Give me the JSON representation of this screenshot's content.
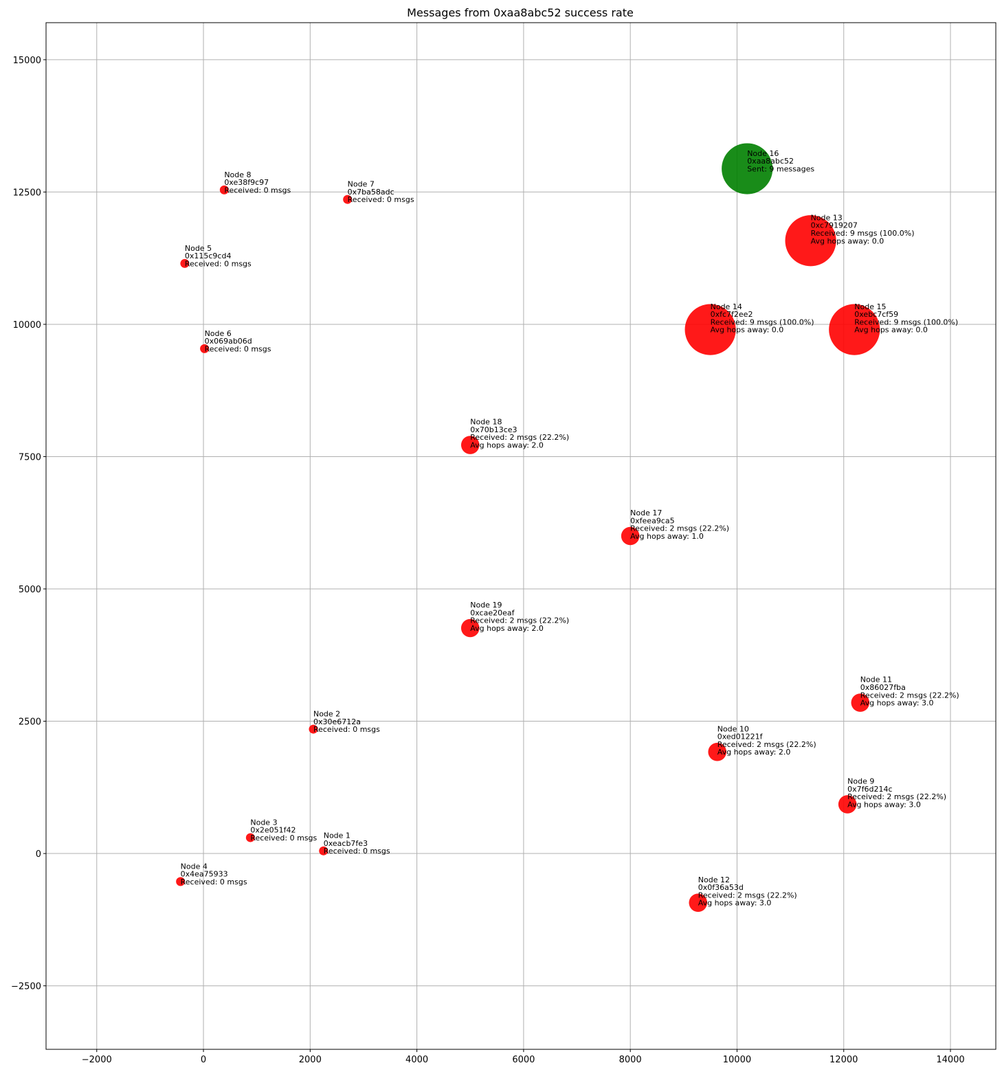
{
  "chart_data": {
    "type": "scatter",
    "title": "Messages from 0xaa8abc52 success rate",
    "xlabel": "",
    "ylabel": "",
    "xlim": [
      -2950,
      14850
    ],
    "ylim": [
      -3700,
      15700
    ],
    "xticks": [
      -2000,
      0,
      2000,
      4000,
      6000,
      8000,
      10000,
      12000,
      14000
    ],
    "yticks": [
      -2500,
      0,
      2500,
      5000,
      7500,
      10000,
      12500,
      15000
    ],
    "grid": true,
    "colors": {
      "sender": "#008000",
      "receiver": "#ff0000",
      "grid": "#b0b0b0"
    },
    "points": [
      {
        "x": 2250,
        "y": 50,
        "received": 0,
        "color": "#ff0000",
        "lines": [
          "Node 1",
          "0xeacb7fe3",
          "Received: 0 msgs"
        ]
      },
      {
        "x": 2060,
        "y": 2350,
        "received": 0,
        "color": "#ff0000",
        "lines": [
          "Node 2",
          "0x30e6712a",
          "Received: 0 msgs"
        ]
      },
      {
        "x": 880,
        "y": 300,
        "received": 0,
        "color": "#ff0000",
        "lines": [
          "Node 3",
          "0x2e051f42",
          "Received: 0 msgs"
        ]
      },
      {
        "x": -430,
        "y": -530,
        "received": 0,
        "color": "#ff0000",
        "lines": [
          "Node 4",
          "0x4ea75933",
          "Received: 0 msgs"
        ]
      },
      {
        "x": -350,
        "y": 11150,
        "received": 0,
        "color": "#ff0000",
        "lines": [
          "Node 5",
          "0x115c9cd4",
          "Received: 0 msgs"
        ]
      },
      {
        "x": 20,
        "y": 9540,
        "received": 0,
        "color": "#ff0000",
        "lines": [
          "Node 6",
          "0x069ab06d",
          "Received: 0 msgs"
        ]
      },
      {
        "x": 2700,
        "y": 12360,
        "received": 0,
        "color": "#ff0000",
        "lines": [
          "Node 7",
          "0x7ba58adc",
          "Received: 0 msgs"
        ]
      },
      {
        "x": 390,
        "y": 12540,
        "received": 0,
        "color": "#ff0000",
        "lines": [
          "Node 8",
          "0xe38f9c97",
          "Received: 0 msgs"
        ]
      },
      {
        "x": 12070,
        "y": 930,
        "received": 2,
        "color": "#ff0000",
        "lines": [
          "Node 9",
          "0x7f6d214c",
          "Received: 2 msgs (22.2%)",
          "Avg hops away: 3.0"
        ]
      },
      {
        "x": 9630,
        "y": 1920,
        "received": 2,
        "color": "#ff0000",
        "lines": [
          "Node 10",
          "0xed01221f",
          "Received: 2 msgs (22.2%)",
          "Avg hops away: 2.0"
        ]
      },
      {
        "x": 12310,
        "y": 2850,
        "received": 2,
        "color": "#ff0000",
        "lines": [
          "Node 11",
          "0x86027fba",
          "Received: 2 msgs (22.2%)",
          "Avg hops away: 3.0"
        ]
      },
      {
        "x": 9270,
        "y": -930,
        "received": 2,
        "color": "#ff0000",
        "lines": [
          "Node 12",
          "0x0f36a53d",
          "Received: 2 msgs (22.2%)",
          "Avg hops away: 3.0"
        ]
      },
      {
        "x": 11380,
        "y": 11580,
        "received": 9,
        "color": "#ff0000",
        "lines": [
          "Node 13",
          "0xc7919207",
          "Received: 9 msgs (100.0%)",
          "Avg hops away: 0.0"
        ]
      },
      {
        "x": 9500,
        "y": 9900,
        "received": 9,
        "color": "#ff0000",
        "lines": [
          "Node 14",
          "0xfc7f2ee2",
          "Received: 9 msgs (100.0%)",
          "Avg hops away: 0.0"
        ]
      },
      {
        "x": 12200,
        "y": 9900,
        "received": 9,
        "color": "#ff0000",
        "lines": [
          "Node 15",
          "0xebc7cf59",
          "Received: 9 msgs (100.0%)",
          "Avg hops away: 0.0"
        ]
      },
      {
        "x": 10190,
        "y": 12940,
        "received": 9,
        "color": "#008000",
        "lines": [
          "Node 16",
          "0xaa8abc52",
          "Sent: 9 messages"
        ]
      },
      {
        "x": 8000,
        "y": 6000,
        "received": 2,
        "color": "#ff0000",
        "lines": [
          "Node 17",
          "0xfeea9ca5",
          "Received: 2 msgs (22.2%)",
          "Avg hops away: 1.0"
        ]
      },
      {
        "x": 5000,
        "y": 7720,
        "received": 2,
        "color": "#ff0000",
        "lines": [
          "Node 18",
          "0x70b13ce3",
          "Received: 2 msgs (22.2%)",
          "Avg hops away: 2.0"
        ]
      },
      {
        "x": 5000,
        "y": 4260,
        "received": 2,
        "color": "#ff0000",
        "lines": [
          "Node 19",
          "0xcae20eaf",
          "Received: 2 msgs (22.2%)",
          "Avg hops away: 2.0"
        ]
      }
    ]
  }
}
